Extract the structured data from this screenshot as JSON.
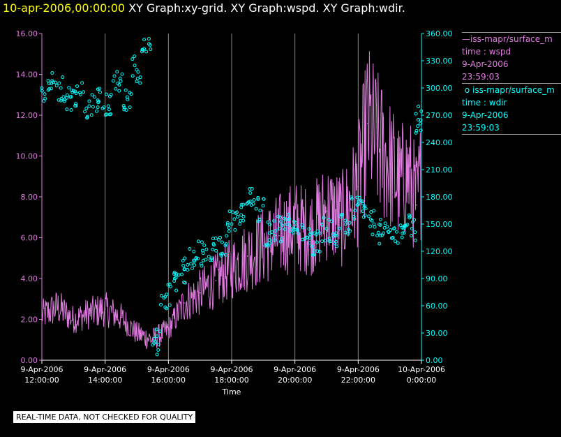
{
  "header": {
    "timestamp": "10-apr-2006,00:00:00",
    "graphs": "XY Graph:xy-grid.  XY Graph:wspd.  XY Graph:wdir."
  },
  "legend": {
    "wspd": {
      "source": "iss-mapr/surface_m",
      "var": "time : wspd",
      "date": "9-Apr-2006",
      "time": "23:59:03"
    },
    "wdir": {
      "source": "iss-mapr/surface_m",
      "var": "time : wdir",
      "date": "9-Apr-2006",
      "time": "23:59:03"
    }
  },
  "footer": {
    "note": "REAL-TIME DATA, NOT CHECKED FOR QUALITY"
  },
  "colors": {
    "wspd": "#e07be0",
    "wdir": "#00ffff",
    "grid": "#888888",
    "axis_left": "#e07be0",
    "axis_right": "#00ffff"
  },
  "chart_data": {
    "type": "line+scatter",
    "xlabel": "Time",
    "x_range_hours": [
      12,
      24
    ],
    "x_ticks": [
      {
        "date": "9-Apr-2006",
        "time": "12:00:00"
      },
      {
        "date": "9-Apr-2006",
        "time": "14:00:00"
      },
      {
        "date": "9-Apr-2006",
        "time": "16:00:00"
      },
      {
        "date": "9-Apr-2006",
        "time": "18:00:00"
      },
      {
        "date": "9-Apr-2006",
        "time": "20:00:00"
      },
      {
        "date": "9-Apr-2006",
        "time": "22:00:00"
      },
      {
        "date": "10-Apr-2006",
        "time": "0:00:00"
      }
    ],
    "y_left": {
      "range": [
        0,
        16
      ],
      "ticks": [
        "0.00",
        "2.00",
        "4.00",
        "6.00",
        "8.00",
        "10.00",
        "12.00",
        "14.00",
        "16.00"
      ]
    },
    "y_right": {
      "range": [
        0,
        360
      ],
      "ticks": [
        "0.00",
        "30.00",
        "60.00",
        "90.00",
        "120.00",
        "150.00",
        "180.00",
        "210.00",
        "240.00",
        "270.00",
        "300.00",
        "330.00",
        "360.00"
      ]
    },
    "grid": "vertical lines at x ticks",
    "series": [
      {
        "name": "wspd",
        "style": "line",
        "axis": "left",
        "x_hours": [
          12.0,
          12.5,
          13.0,
          13.5,
          14.0,
          14.5,
          15.0,
          15.5,
          16.0,
          16.5,
          17.0,
          17.5,
          18.0,
          18.5,
          19.0,
          19.5,
          20.0,
          20.5,
          21.0,
          21.5,
          22.0,
          22.3,
          22.6,
          23.0,
          23.3,
          23.6,
          23.85,
          24.0
        ],
        "values": [
          2.2,
          2.6,
          2.0,
          2.3,
          2.5,
          2.1,
          1.3,
          1.0,
          1.5,
          2.8,
          3.3,
          3.9,
          4.5,
          5.1,
          5.6,
          6.1,
          6.6,
          6.3,
          7.3,
          6.9,
          8.5,
          11.6,
          10.6,
          9.6,
          8.6,
          9.1,
          7.6,
          9.1
        ]
      },
      {
        "name": "wdir",
        "style": "scatter",
        "axis": "right",
        "x_hours": [
          12.0,
          12.3,
          12.6,
          12.9,
          13.2,
          13.5,
          13.8,
          14.1,
          14.4,
          14.7,
          15.0,
          15.3,
          15.6,
          15.9,
          16.2,
          16.5,
          16.8,
          17.1,
          17.4,
          17.7,
          18.0,
          18.3,
          18.6,
          18.9,
          19.2,
          19.5,
          19.8,
          20.1,
          20.4,
          20.7,
          21.0,
          21.3,
          21.6,
          21.9,
          22.2,
          22.5,
          22.8,
          23.1,
          23.4,
          23.7,
          23.9
        ],
        "values": [
          300,
          305,
          300,
          290,
          295,
          280,
          285,
          280,
          305,
          290,
          320,
          340,
          20,
          70,
          90,
          100,
          110,
          118,
          122,
          130,
          150,
          160,
          175,
          165,
          140,
          145,
          155,
          140,
          135,
          130,
          145,
          140,
          150,
          165,
          170,
          150,
          140,
          135,
          140,
          145,
          265
        ]
      }
    ]
  }
}
